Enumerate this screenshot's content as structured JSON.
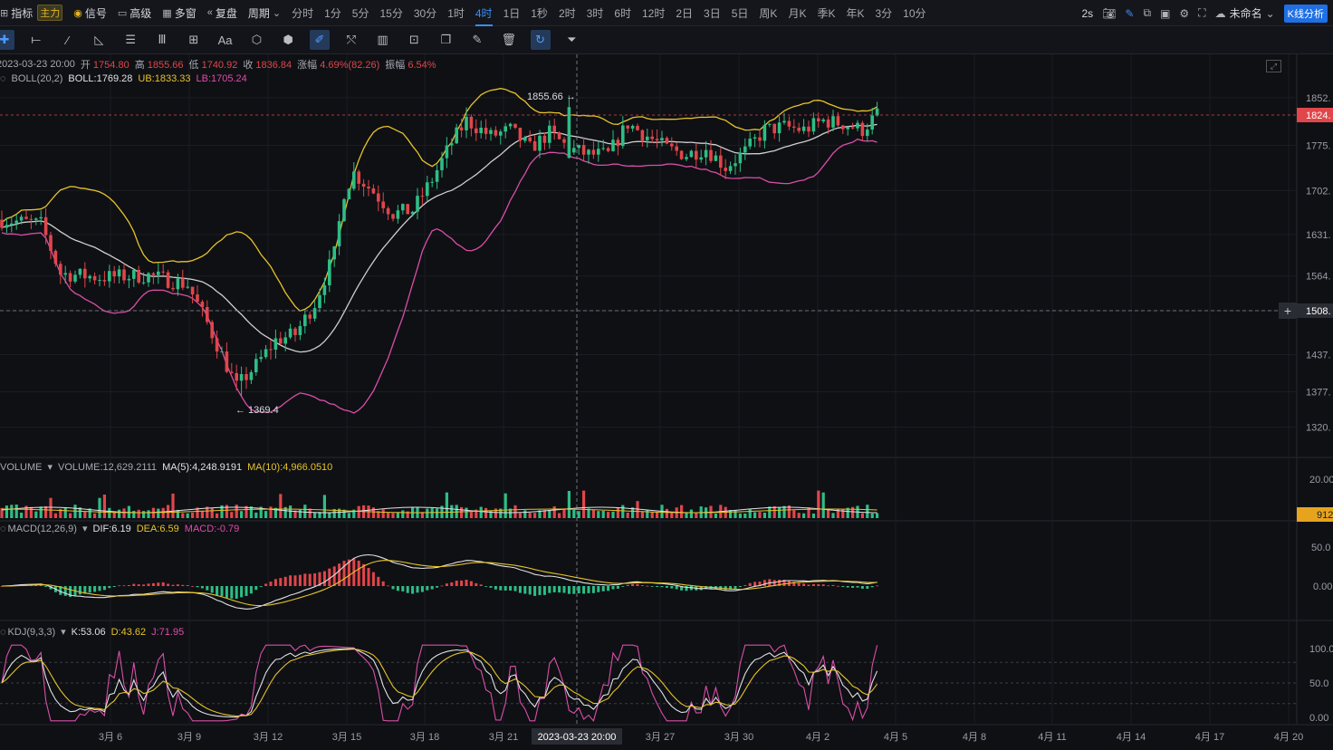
{
  "toolbar": {
    "indicator": "指标",
    "main_badge": "主力",
    "signal": "信号",
    "advanced": "高级",
    "multi_window": "多窗",
    "replay": "复盘",
    "period": "周期",
    "periods": [
      "分时",
      "1分",
      "5分",
      "15分",
      "30分",
      "1时",
      "4时",
      "1日",
      "1秒",
      "2时",
      "3时",
      "6时",
      "12时",
      "2日",
      "3日",
      "5日",
      "周K",
      "月K",
      "季K",
      "年K",
      "3分",
      "10分"
    ],
    "active_period": "4时",
    "refresh": "2s",
    "layout_name": "未命名",
    "kline_analysis": "K线分析"
  },
  "drawing_tools": [
    "crosshair",
    "horizontal-line",
    "trend-line",
    "angle-line",
    "parallel-channel",
    "wave",
    "measure",
    "text",
    "fib-retracement",
    "fib-fan",
    "pencil",
    "magnet",
    "bars-pattern",
    "lock",
    "copy",
    "edit",
    "delete",
    "sync",
    "filter"
  ],
  "ohlc": {
    "time": "2023-03-23 20:00",
    "open_label": "开",
    "open": "1754.80",
    "high_label": "高",
    "high": "1855.66",
    "low_label": "低",
    "low": "1740.92",
    "close_label": "收",
    "close": "1836.84",
    "change_label": "涨幅",
    "change": "4.69%(82.26)",
    "amp_label": "振幅",
    "amp": "6.54%"
  },
  "boll": {
    "name": "BOLL(20,2)",
    "boll": "BOLL:1769.28",
    "ub": "UB:1833.33",
    "lb": "LB:1705.24"
  },
  "volume": {
    "name": "VOLUME",
    "value": "VOLUME:12,629.2111",
    "ma5": "MA(5):4,248.9191",
    "ma10": "MA(10):4,966.0510"
  },
  "macd": {
    "name": "MACD(12,26,9)",
    "dif": "DIF:6.19",
    "dea": "DEA:6.59",
    "macd": "MACD:-0.79"
  },
  "kdj": {
    "name": "KDJ(9,3,3)",
    "k": "K:53.06",
    "d": "D:43.62",
    "j": "J:71.95"
  },
  "price_axis": [
    "1852.",
    "1775.",
    "1702.",
    "1631.",
    "1564.",
    "1508.",
    "1437.",
    "1377.",
    "1320."
  ],
  "current_price_tag": "1824.",
  "crosshair_price_tag": "1508.",
  "vol_axis": [
    "20.00"
  ],
  "vol_tag": "912",
  "macd_axis": [
    "50.0",
    "0.00"
  ],
  "kdj_axis": [
    "100.0",
    "50.0",
    "0.00"
  ],
  "annotations": {
    "high": "1855.66 →",
    "low": "← 1369.4"
  },
  "date_axis": [
    "3月 6",
    "3月 9",
    "3月 12",
    "3月 15",
    "3月 18",
    "3月 21",
    "3月 27",
    "3月 30",
    "4月 2",
    "4月 5",
    "4月 8",
    "4月 11",
    "4月 14",
    "4月 17",
    "4月 20"
  ],
  "crosshair_date": "2023-03-23 20:00",
  "colors": {
    "up": "#2ebd85",
    "down": "#e0464a",
    "boll_mid": "#cfcfcf",
    "boll_ub": "#e6c32a",
    "boll_lb": "#d94ea8",
    "accent": "#3a8df5"
  }
}
